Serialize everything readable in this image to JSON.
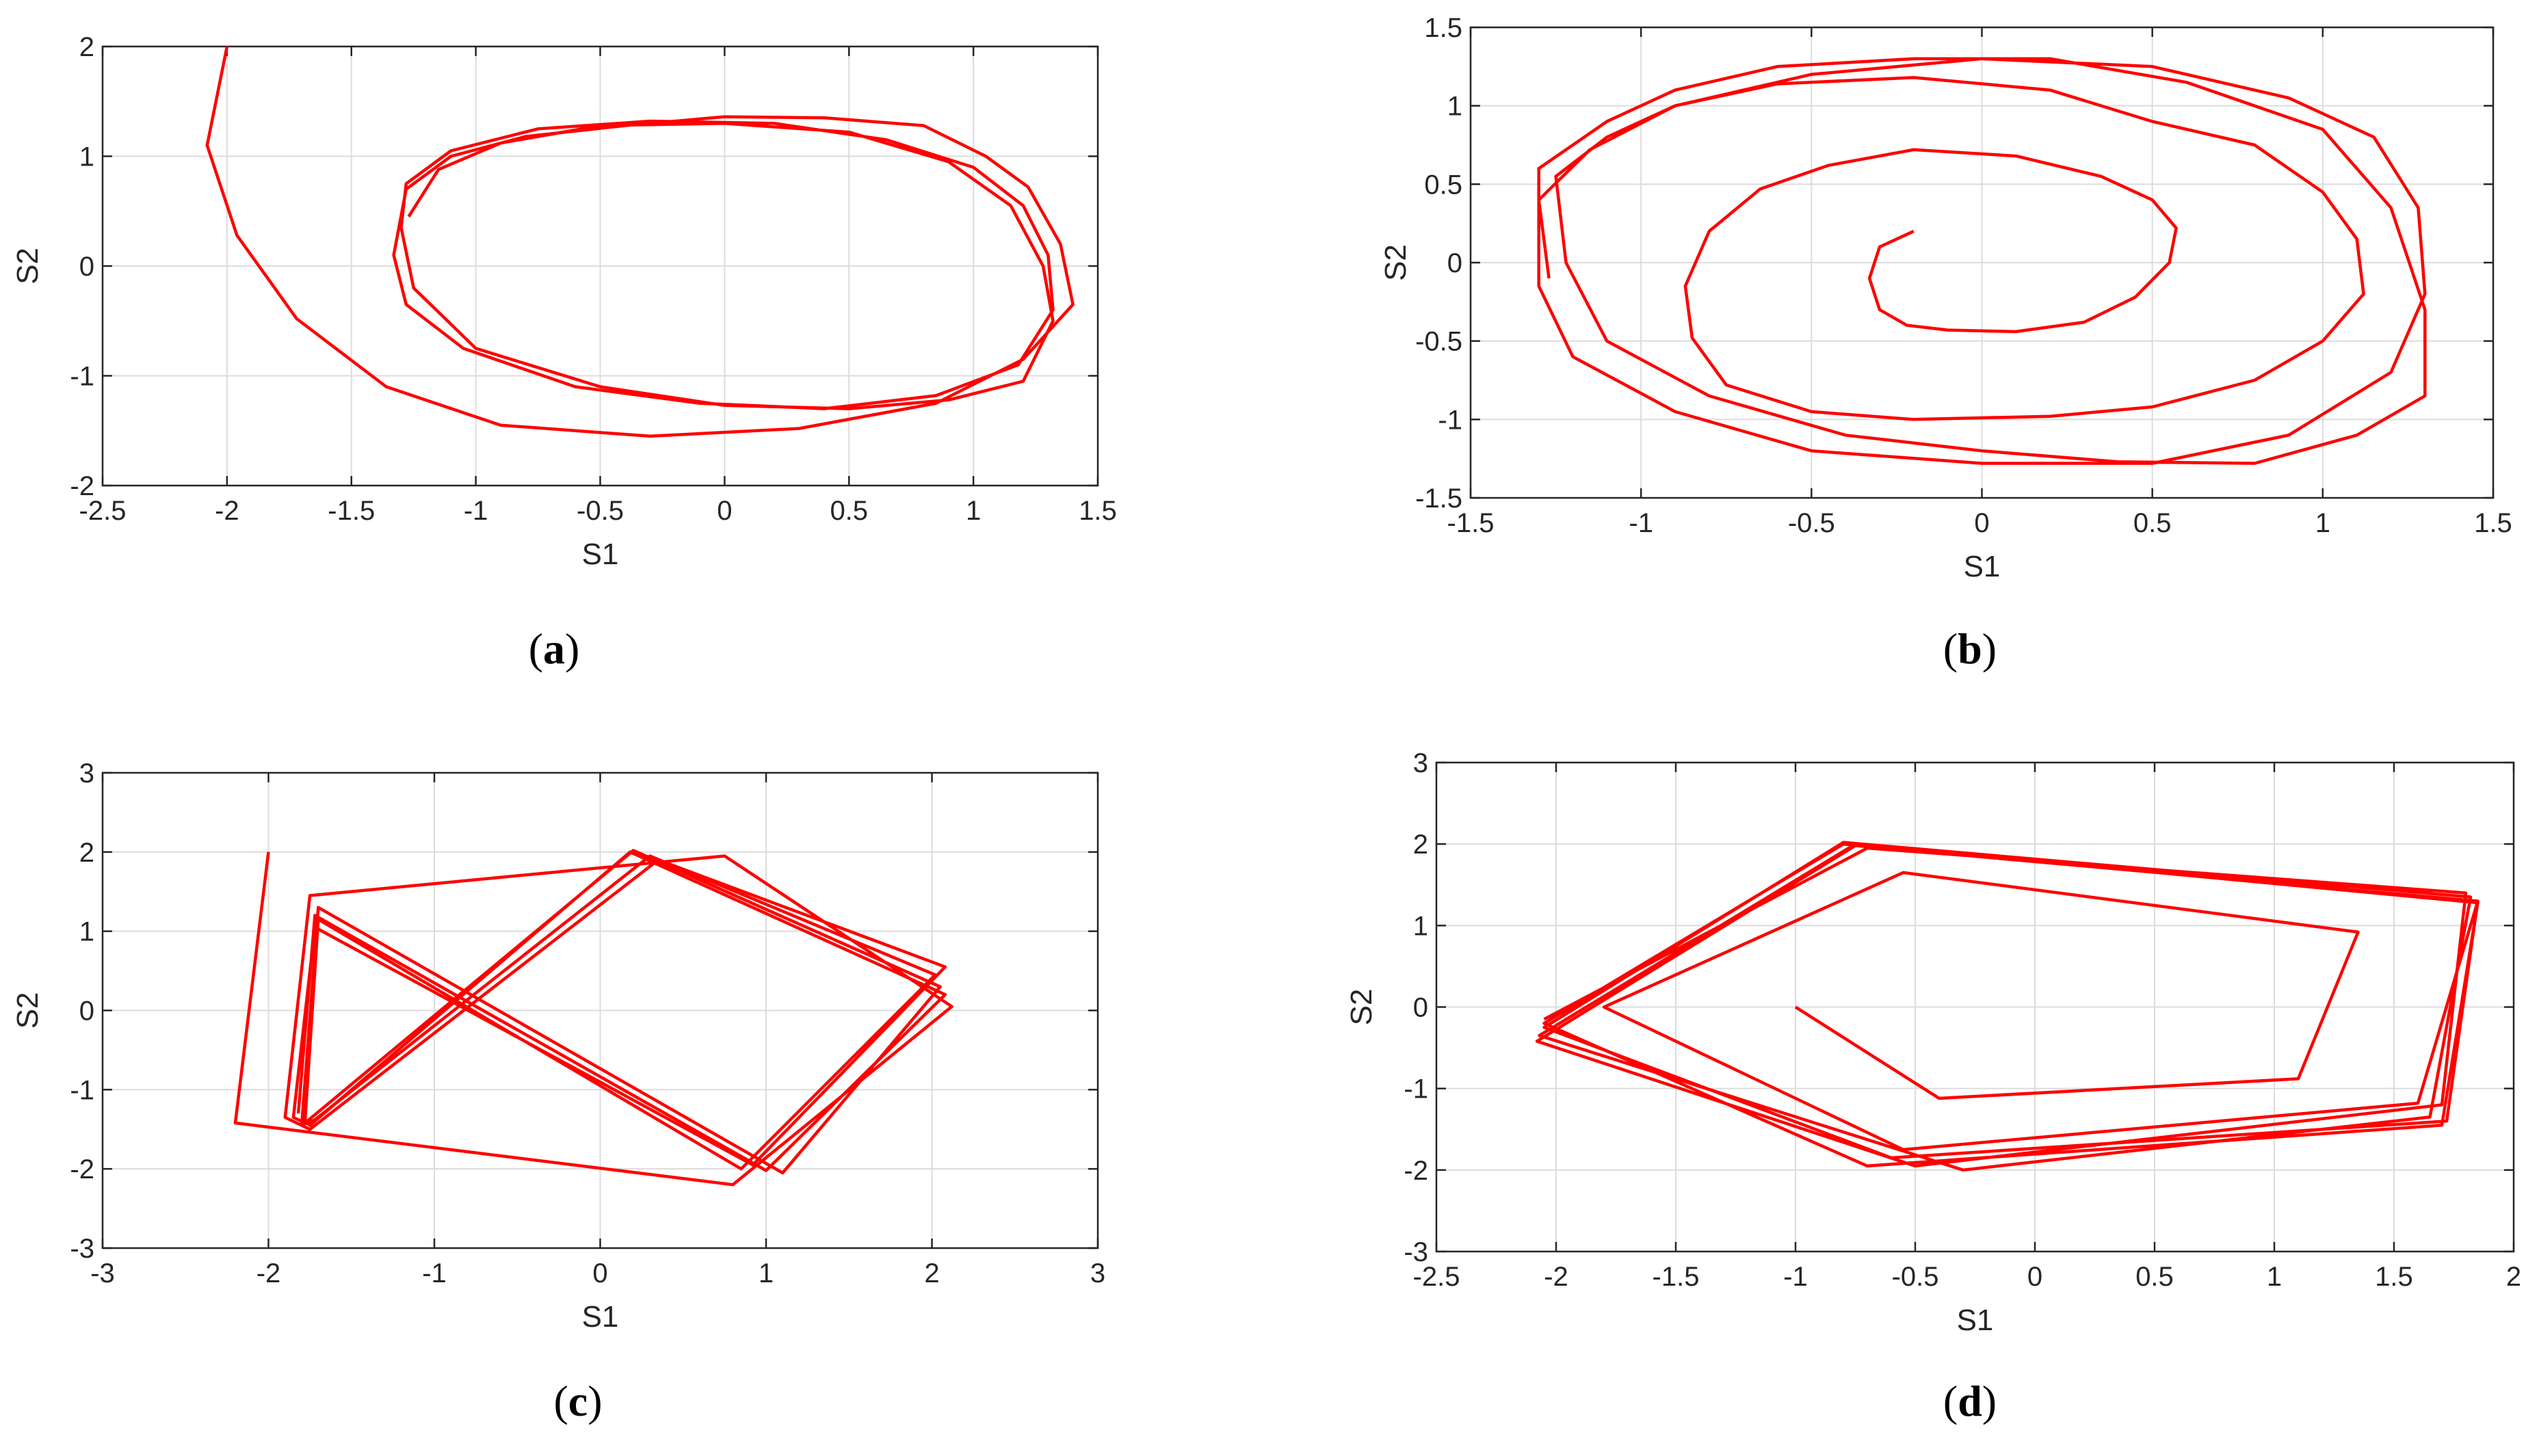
{
  "colors": {
    "series": "#ff0000",
    "grid": "#dcdcdc",
    "axis": "#262626"
  },
  "chart_data": [
    {
      "panel_label": "a",
      "type": "line",
      "xlabel": "S1",
      "ylabel": "S2",
      "xlim": [
        -2.5,
        1.5
      ],
      "ylim": [
        -2,
        2
      ],
      "xticks": [
        "-2.5",
        "-2",
        "-1.5",
        "-1",
        "-0.5",
        "0",
        "0.5",
        "1",
        "1.5"
      ],
      "yticks": [
        "-2",
        "-1",
        "0",
        "1",
        "2"
      ],
      "grid": true,
      "series": [
        {
          "x": [
            -2.0,
            -2.08,
            -1.96,
            -1.72,
            -1.36,
            -0.9,
            -0.3,
            0.3,
            0.85,
            1.2,
            1.4,
            1.35,
            1.22,
            1.05,
            0.8,
            0.4,
            0,
            -0.4,
            -0.8,
            -1.1,
            -1.28,
            -1.33,
            -1.28,
            -1.05,
            -0.6,
            -0.1,
            0.4,
            0.85,
            1.18,
            1.32,
            1.3,
            1.2,
            1.0,
            0.65,
            0.2,
            -0.3,
            -0.75,
            -1.1,
            -1.28,
            -1.3,
            -1.25,
            -1.0,
            -0.5,
            0,
            0.5,
            0.9,
            1.2,
            1.32,
            1.28,
            1.15,
            0.9,
            0.5,
            0,
            -0.5,
            -0.9,
            -1.15,
            -1.27
          ],
          "y": [
            2.0,
            1.1,
            0.28,
            -0.48,
            -1.1,
            -1.45,
            -1.55,
            -1.48,
            -1.25,
            -0.85,
            -0.35,
            0.2,
            0.72,
            1.0,
            1.28,
            1.35,
            1.36,
            1.28,
            1.18,
            1.0,
            0.7,
            0.1,
            -0.35,
            -0.75,
            -1.1,
            -1.25,
            -1.3,
            -1.18,
            -0.9,
            -0.4,
            0.1,
            0.55,
            0.9,
            1.15,
            1.3,
            1.32,
            1.25,
            1.05,
            0.75,
            0.35,
            -0.2,
            -0.75,
            -1.1,
            -1.27,
            -1.3,
            -1.22,
            -1.05,
            -0.5,
            0.0,
            0.55,
            0.95,
            1.22,
            1.3,
            1.28,
            1.12,
            0.88,
            0.45
          ]
        }
      ]
    },
    {
      "panel_label": "b",
      "type": "line",
      "xlabel": "S1",
      "ylabel": "S2",
      "xlim": [
        -1.5,
        1.5
      ],
      "ylim": [
        -1.5,
        1.5
      ],
      "xticks": [
        "-1.5",
        "-1",
        "-0.5",
        "0",
        "0.5",
        "1",
        "1.5"
      ],
      "yticks": [
        "-1.5",
        "-1",
        "-0.5",
        "0",
        "0.5",
        "1",
        "1.5"
      ],
      "grid": true,
      "series": [
        {
          "x": [
            -0.2,
            -0.3,
            -0.33,
            -0.3,
            -0.22,
            -0.1,
            0.1,
            0.3,
            0.45,
            0.55,
            0.57,
            0.5,
            0.35,
            0.1,
            -0.2,
            -0.45,
            -0.65,
            -0.8,
            -0.87,
            -0.85,
            -0.75,
            -0.5,
            -0.2,
            0.2,
            0.5,
            0.8,
            1.0,
            1.12,
            1.1,
            1.0,
            0.8,
            0.5,
            0.2,
            -0.2,
            -0.6,
            -0.9,
            -1.1,
            -1.25,
            -1.22,
            -1.1,
            -0.8,
            -0.4,
            0,
            0.4,
            0.8,
            1.1,
            1.3,
            1.3,
            1.2,
            1.0,
            0.6,
            0.2,
            -0.2,
            -0.6,
            -0.9,
            -1.1,
            -1.3,
            -1.3,
            -1.2,
            -0.9,
            -0.5,
            0,
            0.5,
            0.9,
            1.2,
            1.3,
            1.28,
            1.15,
            0.9,
            0.5,
            0,
            -0.5,
            -0.9,
            -1.15,
            -1.3,
            -1.27
          ],
          "y": [
            0.2,
            0.1,
            -0.1,
            -0.3,
            -0.4,
            -0.43,
            -0.44,
            -0.38,
            -0.22,
            0.0,
            0.22,
            0.4,
            0.55,
            0.68,
            0.72,
            0.62,
            0.47,
            0.2,
            -0.15,
            -0.48,
            -0.78,
            -0.95,
            -1.0,
            -0.98,
            -0.92,
            -0.75,
            -0.5,
            -0.2,
            0.15,
            0.45,
            0.75,
            0.9,
            1.1,
            1.18,
            1.14,
            1.0,
            0.8,
            0.55,
            0.0,
            -0.5,
            -0.85,
            -1.1,
            -1.2,
            -1.27,
            -1.28,
            -1.1,
            -0.85,
            -0.3,
            0.35,
            0.85,
            1.15,
            1.3,
            1.3,
            1.25,
            1.1,
            0.9,
            0.6,
            -0.15,
            -0.6,
            -0.95,
            -1.2,
            -1.28,
            -1.28,
            -1.1,
            -0.7,
            -0.2,
            0.35,
            0.8,
            1.05,
            1.25,
            1.3,
            1.2,
            1.0,
            0.72,
            0.4,
            -0.1
          ]
        }
      ]
    },
    {
      "panel_label": "c",
      "type": "line",
      "xlabel": "S1",
      "ylabel": "S2",
      "xlim": [
        -3,
        3
      ],
      "ylim": [
        -3,
        3
      ],
      "xticks": [
        "-3",
        "-2",
        "-1",
        "0",
        "1",
        "2",
        "3"
      ],
      "yticks": [
        "-3",
        "-2",
        "-1",
        "0",
        "1",
        "2",
        "3"
      ],
      "grid": true,
      "series": [
        {
          "x": [
            -2.0,
            -2.2,
            0.8,
            2.12,
            0.75,
            -1.75,
            -1.9,
            -1.75,
            0.35,
            2.08,
            0.92,
            -1.72,
            -1.85,
            -1.78,
            0.2,
            2.05,
            1.1,
            -1.7,
            -1.8,
            -1.72,
            0.3,
            2.02,
            0.85,
            -1.7,
            -1.78,
            -1.75,
            0.18,
            2.08,
            1.0,
            -1.72,
            -1.82
          ],
          "y": [
            2.0,
            -1.42,
            -2.2,
            0.05,
            1.95,
            1.45,
            -1.35,
            -1.5,
            1.9,
            0.55,
            -1.95,
            1.05,
            -1.35,
            -1.42,
            2.02,
            0.3,
            -2.05,
            1.3,
            -1.45,
            -1.38,
            1.95,
            0.45,
            -2.0,
            1.15,
            -1.4,
            -1.45,
            2.0,
            0.2,
            -2.02,
            1.2,
            -1.3
          ]
        }
      ]
    },
    {
      "panel_label": "d",
      "type": "line",
      "xlabel": "S1",
      "ylabel": "S2",
      "xlim": [
        -2.5,
        2
      ],
      "ylim": [
        -3,
        3
      ],
      "xticks": [
        "-2.5",
        "-2",
        "-1.5",
        "-1",
        "-0.5",
        "0",
        "0.5",
        "1",
        "1.5",
        "2"
      ],
      "yticks": [
        "-3",
        "-2",
        "-1",
        "0",
        "1",
        "2",
        "3"
      ],
      "grid": true,
      "series": [
        {
          "x": [
            -1.0,
            -0.4,
            1.1,
            1.35,
            -0.55,
            -1.8,
            -0.55,
            1.6,
            1.85,
            -0.8,
            -2.05,
            -0.7,
            1.7,
            1.85,
            -0.75,
            -2.07,
            -0.3,
            1.65,
            1.82,
            -0.8,
            -2.05,
            -0.6,
            1.72,
            1.85,
            -0.75,
            -2.08,
            -0.5,
            1.7,
            1.8,
            -0.7,
            -2.05
          ],
          "y": [
            0.0,
            -1.12,
            -0.88,
            0.92,
            1.65,
            0.0,
            -1.75,
            -1.18,
            1.3,
            2.0,
            -0.2,
            -1.95,
            -1.45,
            1.28,
            2.0,
            -0.35,
            -2.0,
            -1.35,
            1.35,
            2.02,
            -0.25,
            -1.85,
            -1.4,
            1.3,
            1.98,
            -0.42,
            -1.95,
            -1.2,
            1.4,
            1.95,
            -0.15
          ]
        }
      ]
    }
  ]
}
